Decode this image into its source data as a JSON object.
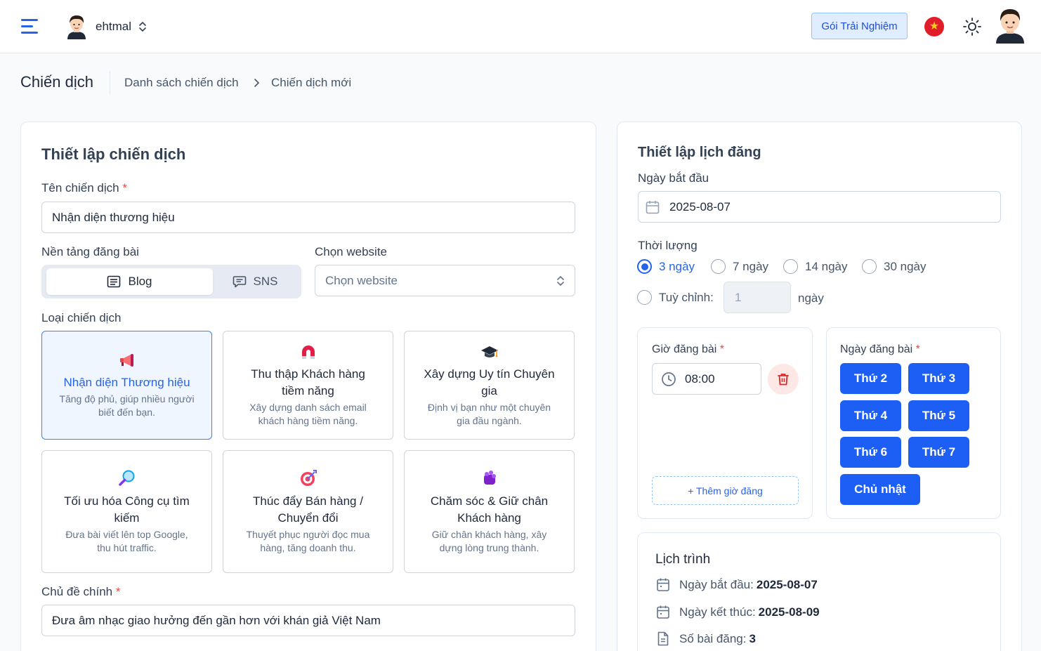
{
  "header": {
    "account_name": "ehtmal",
    "trial_button": "Gói Trải Nghiệm",
    "colors": {
      "accent": "#2563eb",
      "flag_red": "#e11d2a",
      "flag_star": "#facc15"
    }
  },
  "breadcrumb": {
    "title": "Chiến dịch",
    "items": [
      "Danh sách chiến dịch",
      "Chiến dịch mới"
    ]
  },
  "campaign": {
    "heading": "Thiết lập chiến dịch",
    "name_label": "Tên chiến dịch",
    "name_value": "Nhận diện thương hiệu",
    "platform_label": "Nền tảng đăng bài",
    "platforms": [
      "Blog",
      "SNS"
    ],
    "platform_selected": "Blog",
    "website_label": "Chọn website",
    "website_placeholder": "Chọn website",
    "type_label": "Loại chiến dịch",
    "types": [
      {
        "icon": "megaphone-icon",
        "title": "Nhận diện Thương hiệu",
        "desc": "Tăng độ phủ, giúp nhiều người biết đến bạn.",
        "selected": true
      },
      {
        "icon": "magnet-icon",
        "title": "Thu thập Khách hàng tiềm năng",
        "desc": "Xây dựng danh sách email khách hàng tiềm năng."
      },
      {
        "icon": "graduation-cap-icon",
        "title": "Xây dựng Uy tín Chuyên gia",
        "desc": "Định vị bạn như một chuyên gia đầu ngành."
      },
      {
        "icon": "magnifier-icon",
        "title": "Tối ưu hóa Công cụ tìm kiếm",
        "desc": "Đưa bài viết lên top Google, thu hút traffic."
      },
      {
        "icon": "target-icon",
        "title": "Thúc đẩy Bán hàng / Chuyển đổi",
        "desc": "Thuyết phục người đọc mua hàng, tăng doanh thu."
      },
      {
        "icon": "handshake-icon",
        "title": "Chăm sóc & Giữ chân Khách hàng",
        "desc": "Giữ chân khách hàng, xây dựng lòng trung thành."
      }
    ],
    "topic_label": "Chủ đề chính",
    "topic_value": "Đưa âm nhạc giao hưởng đến gần hơn với khán giả Việt Nam"
  },
  "schedule": {
    "heading": "Thiết lập lịch đăng",
    "start_label": "Ngày bắt đầu",
    "start_value": "2025-08-07",
    "duration_label": "Thời lượng",
    "durations": [
      "3 ngày",
      "7 ngày",
      "14 ngày",
      "30 ngày"
    ],
    "duration_selected": "3 ngày",
    "custom_label": "Tuỳ chỉnh:",
    "custom_value": "1",
    "custom_unit": "ngày",
    "time_label": "Giờ đăng bài",
    "times": [
      "08:00"
    ],
    "add_time": "+ Thêm giờ đăng",
    "days_label": "Ngày đăng bài",
    "days": [
      "Thứ 2",
      "Thứ 3",
      "Thứ 4",
      "Thứ 5",
      "Thứ 6",
      "Thứ 7",
      "Chủ nhật"
    ],
    "timeline_heading": "Lịch trình",
    "timeline": [
      {
        "label": "Ngày bắt đầu:",
        "value": "2025-08-07"
      },
      {
        "label": "Ngày kết thúc:",
        "value": "2025-08-09"
      },
      {
        "label": "Số bài đăng:",
        "value": "3"
      }
    ]
  }
}
